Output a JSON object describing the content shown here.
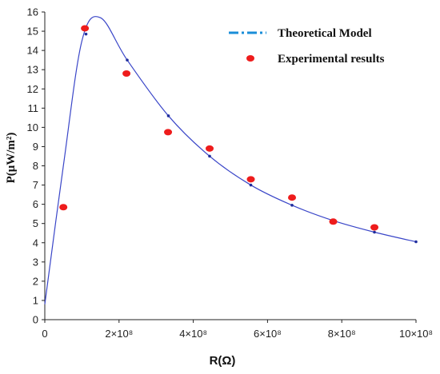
{
  "chart_data": {
    "type": "scatter",
    "title": "",
    "xlabel": "R(Ω)",
    "ylabel": "P(μW/m²)",
    "xlim": [
      0,
      1000000000
    ],
    "ylim": [
      0,
      16
    ],
    "x_ticks": [
      {
        "value": 0,
        "label": "0"
      },
      {
        "value": 200000000,
        "label": "2×10⁸"
      },
      {
        "value": 400000000,
        "label": "4×10⁸"
      },
      {
        "value": 600000000,
        "label": "6×10⁸"
      },
      {
        "value": 800000000,
        "label": "8×10⁸"
      },
      {
        "value": 1000000000,
        "label": "10×10⁸"
      }
    ],
    "y_ticks": [
      0,
      1,
      2,
      3,
      4,
      5,
      6,
      7,
      8,
      9,
      10,
      11,
      12,
      13,
      14,
      15,
      16
    ],
    "grid": false,
    "legend_position": "top-right",
    "series": [
      {
        "name": "Theoretical Model",
        "type": "line",
        "color": "#3a46c8",
        "x": [
          0,
          50000000,
          100000000,
          150000000,
          222000000,
          333000000,
          444000000,
          555000000,
          666000000,
          777000000,
          888000000,
          1000000000
        ],
        "y": [
          0.8,
          8.0,
          14.5,
          15.7,
          13.5,
          10.6,
          8.5,
          7.0,
          5.95,
          5.15,
          4.55,
          4.05
        ],
        "marker_points": {
          "x": [
            111000000,
            222000000,
            333000000,
            444000000,
            555000000,
            666000000,
            777000000,
            888000000,
            1000000000
          ],
          "y": [
            14.85,
            13.5,
            10.6,
            8.5,
            7.0,
            5.95,
            5.15,
            4.55,
            4.05
          ]
        }
      },
      {
        "name": "Experimental results",
        "type": "scatter",
        "color": "#ee1c1c",
        "x": [
          50000000,
          108000000,
          220000000,
          332000000,
          444000000,
          555000000,
          666000000,
          777000000,
          888000000
        ],
        "y": [
          5.85,
          15.15,
          12.8,
          9.75,
          8.9,
          7.3,
          6.35,
          5.1,
          4.8
        ]
      }
    ]
  }
}
